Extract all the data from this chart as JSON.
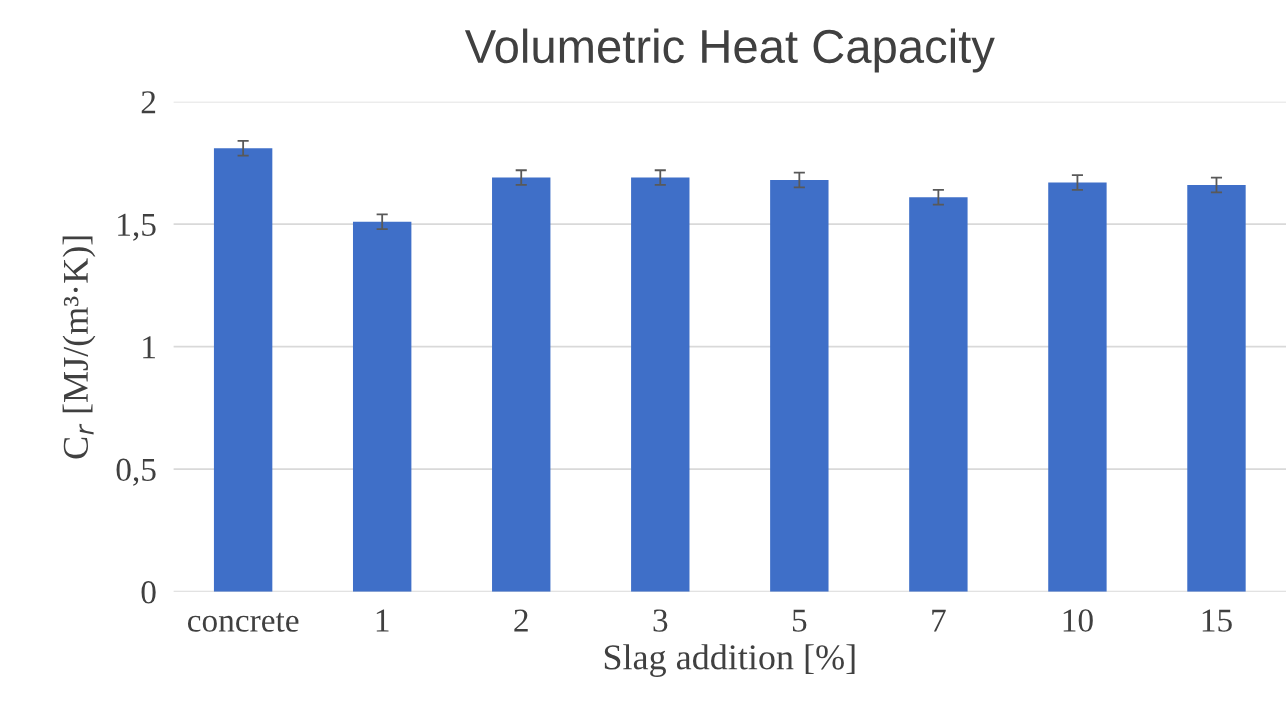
{
  "chart_data": {
    "type": "bar",
    "title": "Volumetric Heat Capacity",
    "xlabel": "Slag addition [%]",
    "ylabel": "C$_{r}$ [MJ/(m³·K)]",
    "categories": [
      "concrete",
      "1",
      "2",
      "3",
      "5",
      "7",
      "10",
      "15"
    ],
    "values": [
      1.81,
      1.51,
      1.69,
      1.69,
      1.68,
      1.61,
      1.67,
      1.66
    ],
    "errors": [
      0.03,
      0.03,
      0.03,
      0.03,
      0.03,
      0.03,
      0.03,
      0.03
    ],
    "color": "#3f6fc8",
    "ylim": [
      0,
      2
    ],
    "yticks": [
      0,
      {
        "value": 0.5,
        "label": "0,5"
      },
      1,
      {
        "value": 1.5,
        "label": "1,5"
      },
      2
    ],
    "grid": "y"
  }
}
